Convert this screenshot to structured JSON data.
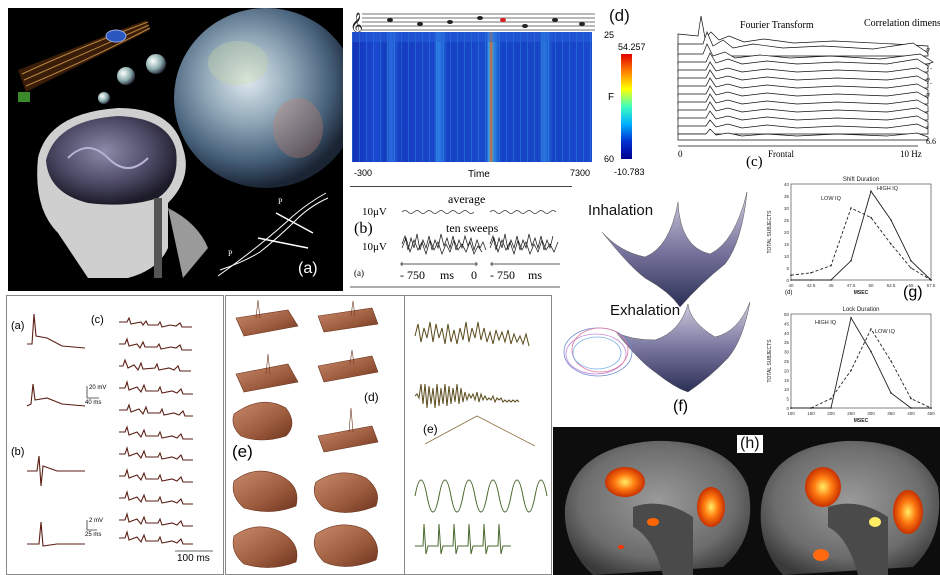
{
  "panel_a": {
    "label": "(a)"
  },
  "panel_d": {
    "label": "(d)",
    "y_top": "25",
    "y_mid": "F",
    "y_bottom": "60",
    "x_left": "-300",
    "x_mid": "Time",
    "x_right": "7300",
    "cbar_max": "54.257",
    "cbar_min": "-10.783"
  },
  "panel_b": {
    "label": "(b)",
    "sub": "(a)",
    "average": "average",
    "ten_sweeps": "ten sweeps",
    "scale_top": "10μV",
    "scale_bottom": "10μV",
    "axis_left": "- 750",
    "axis_left_unit": "ms",
    "axis_left_zero": "0",
    "axis_right": "- 750",
    "axis_right_unit": "ms",
    "axis_right_zero": "0"
  },
  "panel_c": {
    "label": "(c)",
    "title_left": "Fourier Transform",
    "title_right": "Correlation dimensio",
    "x_left": "0",
    "x_mid": "Frontal",
    "x_right": "10 Hz",
    "side_values": [
      "7",
      "7.",
      "7.",
      "7",
      "-",
      "-",
      "6.6"
    ]
  },
  "panel_f": {
    "label": "(f)",
    "inhalation": "Inhalation",
    "exhalation": "Exhalation"
  },
  "panel_g": {
    "label": "(g)",
    "sub": "(d)",
    "chart1": {
      "title": "Shift Duration",
      "xlabel": "MSEC",
      "ylabel": "TOTAL SUBJECTS",
      "yticks": [
        "40",
        "35",
        "30",
        "25",
        "20",
        "15",
        "10",
        "5",
        "0"
      ],
      "xticks": [
        "40",
        "42.5",
        "45",
        "47.5",
        "50",
        "52.5",
        "55",
        "57.5"
      ],
      "annot_high": "HIGH IQ",
      "annot_low": "LOW IQ"
    },
    "chart2": {
      "title": "Lock Duration",
      "xlabel": "MSEC",
      "ylabel": "TOTAL SUBJECTS",
      "yticks": [
        "50",
        "45",
        "40",
        "35",
        "30",
        "25",
        "20",
        "15",
        "10",
        "5",
        "0"
      ],
      "xticks": [
        "100",
        "150",
        "200",
        "250",
        "300",
        "350",
        "400",
        "450"
      ],
      "annot_high": "HIGH IQ",
      "annot_low": "LOW IQ"
    }
  },
  "panel_neuro": {
    "label_a": "(a)",
    "label_b": "(b)",
    "label_c": "(c)",
    "scale1_v": "20 mV",
    "scale1_t": "40 ms",
    "scale2_v": "2 mV",
    "scale2_t": "25 ms",
    "time_scale": "100 ms"
  },
  "panel_e3d": {
    "label_d": "(d)",
    "label_e": "(e)"
  },
  "panel_e_traces": {
    "label": "(e)"
  },
  "panel_h": {
    "label": "(h)"
  },
  "chart_data": [
    {
      "type": "line",
      "title": "Shift Duration",
      "xlabel": "MSEC",
      "ylabel": "TOTAL SUBJECTS",
      "x": [
        40,
        42.5,
        45,
        47.5,
        50,
        52.5,
        55,
        57.5
      ],
      "xlim": [
        40,
        57.5
      ],
      "ylim": [
        0,
        40
      ],
      "series": [
        {
          "name": "HIGH IQ",
          "style": "solid",
          "values": [
            0,
            0,
            0,
            8,
            37,
            25,
            8,
            0
          ]
        },
        {
          "name": "LOW IQ",
          "style": "dashed",
          "values": [
            2,
            3,
            6,
            30,
            26,
            15,
            5,
            0
          ]
        }
      ]
    },
    {
      "type": "line",
      "title": "Lock Duration",
      "xlabel": "MSEC",
      "ylabel": "TOTAL SUBJECTS",
      "x": [
        100,
        150,
        200,
        250,
        300,
        350,
        400,
        450
      ],
      "xlim": [
        100,
        450
      ],
      "ylim": [
        0,
        50
      ],
      "series": [
        {
          "name": "HIGH IQ",
          "style": "solid",
          "values": [
            0,
            0,
            0,
            48,
            30,
            8,
            0,
            0
          ]
        },
        {
          "name": "LOW IQ",
          "style": "dashed",
          "values": [
            0,
            0,
            5,
            20,
            42,
            25,
            5,
            0
          ]
        }
      ]
    }
  ]
}
